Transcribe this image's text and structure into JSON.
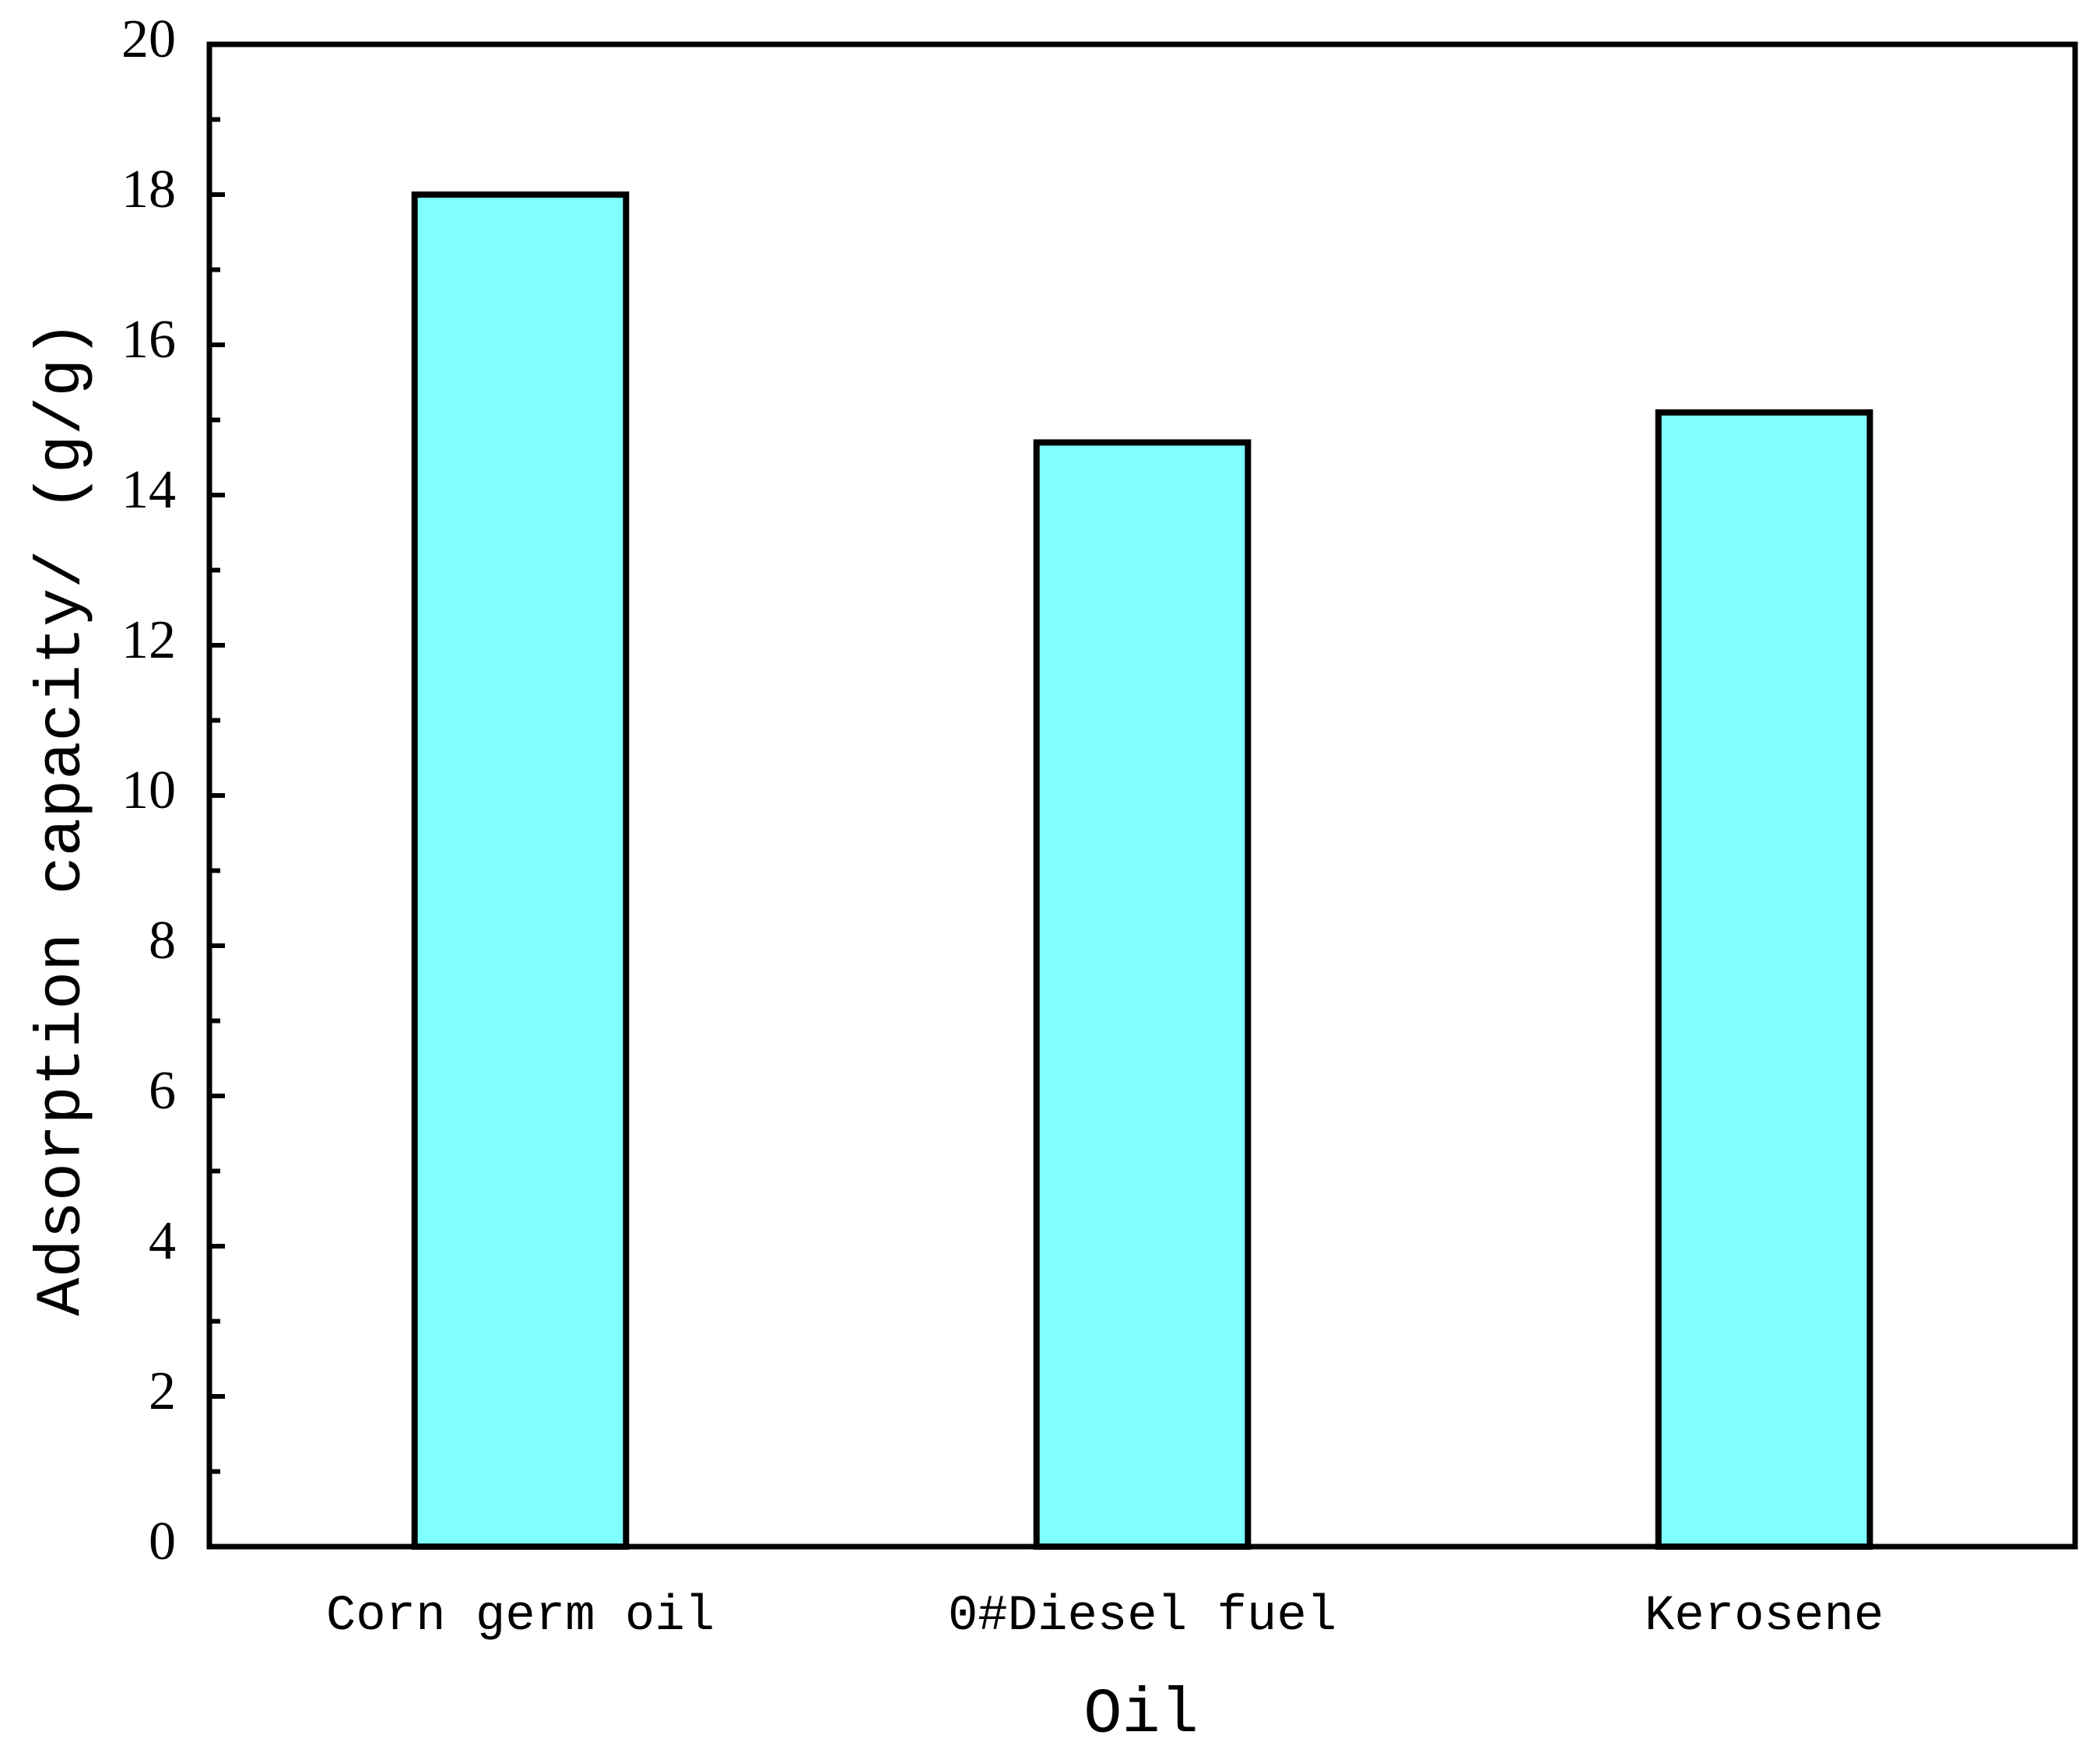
{
  "chart_data": {
    "type": "bar",
    "x_label": "Oil",
    "y_label": "Adsorption capacity/ (g/g)",
    "categories": [
      "Corn germ oil",
      "0#Diesel fuel",
      "Kerosene"
    ],
    "values": [
      18.0,
      14.7,
      15.1
    ],
    "color": "#80ffff",
    "ylim": [
      0,
      20
    ],
    "yticks": [
      0,
      2,
      4,
      6,
      8,
      10,
      12,
      14,
      16,
      18,
      20
    ],
    "grid": false
  }
}
